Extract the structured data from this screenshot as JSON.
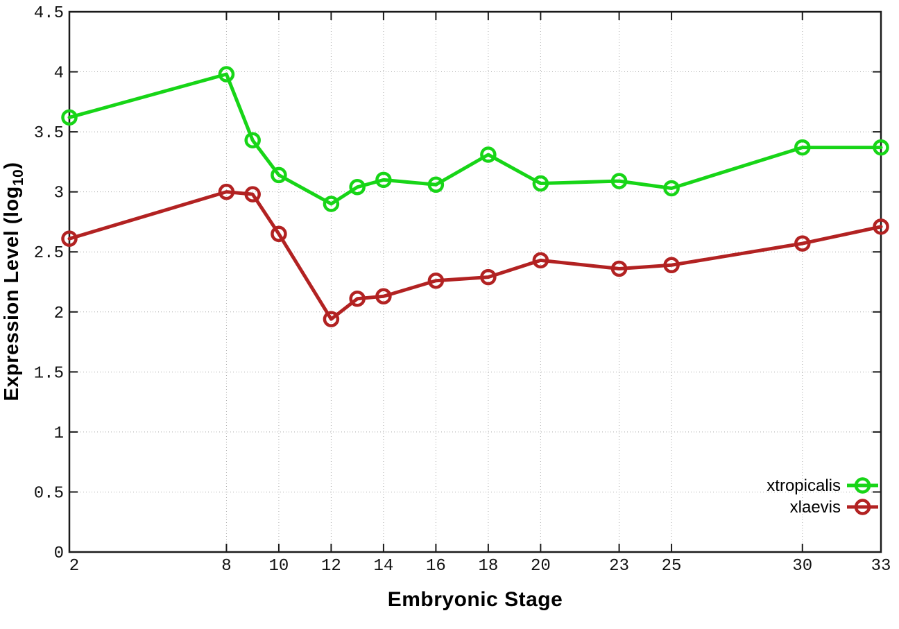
{
  "figure": {
    "background": "#ffffff",
    "xlabel": "Embryonic Stage",
    "ylabel_main": "Expression Level (log",
    "ylabel_sub": "10",
    "ylabel_end": ")"
  },
  "chart_data": {
    "type": "line",
    "title": "",
    "xlabel": "Embryonic Stage",
    "ylabel": "Expression Level (log10)",
    "grid": true,
    "legend_position": "bottom-right",
    "xlim": [
      2,
      33
    ],
    "ylim": [
      0,
      4.5
    ],
    "x": [
      2,
      8,
      9,
      10,
      12,
      13,
      14,
      16,
      18,
      20,
      23,
      25,
      30,
      33
    ],
    "x_tick_labels": [
      "2",
      "8",
      "10",
      "12",
      "14",
      "16",
      "18",
      "20",
      "23",
      "25",
      "30",
      "33"
    ],
    "x_tick_values": [
      2,
      8,
      10,
      12,
      14,
      16,
      18,
      20,
      23,
      25,
      30,
      33
    ],
    "y_tick_labels": [
      "0",
      "0.5",
      "1",
      "1.5",
      "2",
      "2.5",
      "3",
      "3.5",
      "4",
      "4.5"
    ],
    "y_tick_values": [
      0,
      0.5,
      1,
      1.5,
      2,
      2.5,
      3,
      3.5,
      4,
      4.5
    ],
    "series": [
      {
        "name": "xtropicalis",
        "color": "#17d517",
        "values": [
          3.62,
          3.98,
          3.43,
          3.14,
          2.9,
          3.04,
          3.1,
          3.06,
          3.31,
          3.07,
          3.09,
          3.03,
          3.37,
          3.37
        ]
      },
      {
        "name": "xlaevis",
        "color": "#b22222",
        "values": [
          2.61,
          3.0,
          2.98,
          2.65,
          1.94,
          2.11,
          2.13,
          2.26,
          2.29,
          2.43,
          2.36,
          2.39,
          2.57,
          2.71
        ]
      }
    ],
    "style": {
      "grid_color": "#aaaaaa",
      "axis_color": "#1a1a1a",
      "tick_label_color": "#111111",
      "legend_text_color": "#000000"
    }
  }
}
